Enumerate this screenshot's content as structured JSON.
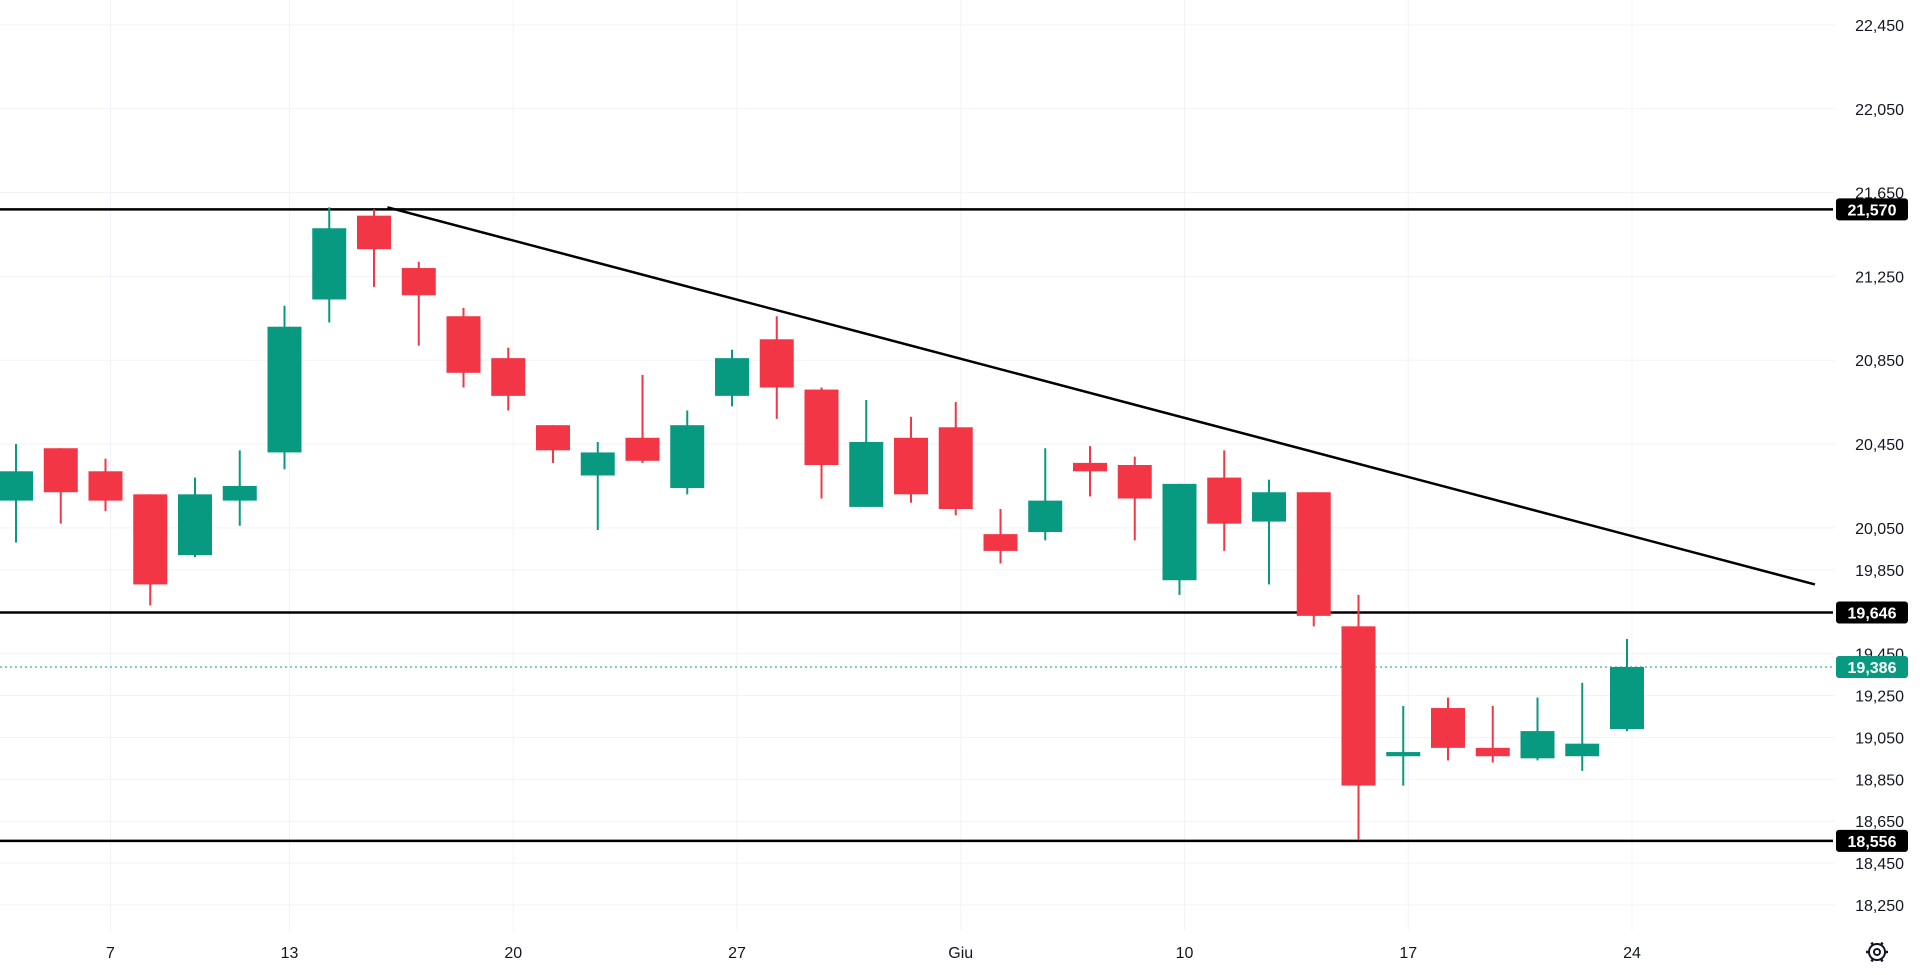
{
  "colors": {
    "up": "#089981",
    "down": "#f23645",
    "grid": "#f0f3fa",
    "text": "#131722",
    "line": "#000000",
    "last_price": "#089981"
  },
  "icons": {
    "settings": "settings-gear-icon"
  },
  "chart_data": {
    "type": "candlestick",
    "title": "",
    "xlabel": "",
    "ylabel": "",
    "ylim": [
      18050,
      22550
    ],
    "y_ticks": [
      18250,
      18450,
      18650,
      18850,
      19050,
      19250,
      19450,
      19850,
      20050,
      20450,
      20850,
      21250,
      21650,
      22050,
      22450
    ],
    "y_tick_labels": [
      "18,250",
      "18,450",
      "18,650",
      "18,850",
      "19,050",
      "19,250",
      "19,450",
      "19,850",
      "20,050",
      "20,450",
      "20,850",
      "21,250",
      "21,650",
      "22,050",
      "22,450"
    ],
    "x_ticks": [
      {
        "label": "7",
        "index": 2
      },
      {
        "label": "13",
        "index": 6
      },
      {
        "label": "20",
        "index": 11
      },
      {
        "label": "27",
        "index": 16
      },
      {
        "label": "Giu",
        "index": 21
      },
      {
        "label": "10",
        "index": 26
      },
      {
        "label": "17",
        "index": 31
      },
      {
        "label": "24",
        "index": 36
      }
    ],
    "candles": [
      {
        "o": 20180,
        "h": 20450,
        "l": 19980,
        "c": 20320
      },
      {
        "o": 20430,
        "h": 20430,
        "l": 20070,
        "c": 20220
      },
      {
        "o": 20320,
        "h": 20380,
        "l": 20130,
        "c": 20180
      },
      {
        "o": 20210,
        "h": 20210,
        "l": 19680,
        "c": 19780
      },
      {
        "o": 19920,
        "h": 20290,
        "l": 19910,
        "c": 20210
      },
      {
        "o": 20180,
        "h": 20420,
        "l": 20060,
        "c": 20250
      },
      {
        "o": 20410,
        "h": 21110,
        "l": 20330,
        "c": 21010
      },
      {
        "o": 21140,
        "h": 21580,
        "l": 21030,
        "c": 21480
      },
      {
        "o": 21540,
        "h": 21570,
        "l": 21200,
        "c": 21380
      },
      {
        "o": 21290,
        "h": 21320,
        "l": 20920,
        "c": 21160
      },
      {
        "o": 21060,
        "h": 21100,
        "l": 20720,
        "c": 20790
      },
      {
        "o": 20860,
        "h": 20910,
        "l": 20610,
        "c": 20680
      },
      {
        "o": 20540,
        "h": 20540,
        "l": 20360,
        "c": 20420
      },
      {
        "o": 20300,
        "h": 20460,
        "l": 20040,
        "c": 20410
      },
      {
        "o": 20480,
        "h": 20780,
        "l": 20360,
        "c": 20370
      },
      {
        "o": 20240,
        "h": 20610,
        "l": 20210,
        "c": 20540
      },
      {
        "o": 20680,
        "h": 20900,
        "l": 20630,
        "c": 20860
      },
      {
        "o": 20950,
        "h": 21060,
        "l": 20570,
        "c": 20720
      },
      {
        "o": 20710,
        "h": 20720,
        "l": 20190,
        "c": 20350
      },
      {
        "o": 20150,
        "h": 20660,
        "l": 20150,
        "c": 20460
      },
      {
        "o": 20480,
        "h": 20580,
        "l": 20170,
        "c": 20210
      },
      {
        "o": 20530,
        "h": 20650,
        "l": 20110,
        "c": 20140
      },
      {
        "o": 20020,
        "h": 20140,
        "l": 19880,
        "c": 19940
      },
      {
        "o": 20030,
        "h": 20430,
        "l": 19990,
        "c": 20180
      },
      {
        "o": 20360,
        "h": 20440,
        "l": 20200,
        "c": 20320
      },
      {
        "o": 20350,
        "h": 20390,
        "l": 19990,
        "c": 20190
      },
      {
        "o": 19800,
        "h": 20260,
        "l": 19730,
        "c": 20260
      },
      {
        "o": 20290,
        "h": 20420,
        "l": 19940,
        "c": 20070
      },
      {
        "o": 20080,
        "h": 20280,
        "l": 19780,
        "c": 20220
      },
      {
        "o": 20220,
        "h": 20220,
        "l": 19580,
        "c": 19630
      },
      {
        "o": 19580,
        "h": 19730,
        "l": 18560,
        "c": 18820
      },
      {
        "o": 18960,
        "h": 19200,
        "l": 18820,
        "c": 18980
      },
      {
        "o": 19190,
        "h": 19240,
        "l": 18940,
        "c": 19000
      },
      {
        "o": 19000,
        "h": 19200,
        "l": 18930,
        "c": 18960
      },
      {
        "o": 18950,
        "h": 19240,
        "l": 18940,
        "c": 19080
      },
      {
        "o": 18960,
        "h": 19310,
        "l": 18890,
        "c": 19020
      },
      {
        "o": 19090,
        "h": 19520,
        "l": 19080,
        "c": 19386
      }
    ],
    "horizontal_levels": [
      {
        "value": 21570,
        "label": "21,570"
      },
      {
        "value": 19646,
        "label": "19,646"
      },
      {
        "value": 18556,
        "label": "18,556"
      }
    ],
    "trendline": {
      "start": {
        "index": 8.3,
        "value": 21580
      },
      "end": {
        "index": 40.2,
        "value": 19780
      }
    },
    "last_price": {
      "value": 19386,
      "label": "19,386"
    }
  }
}
